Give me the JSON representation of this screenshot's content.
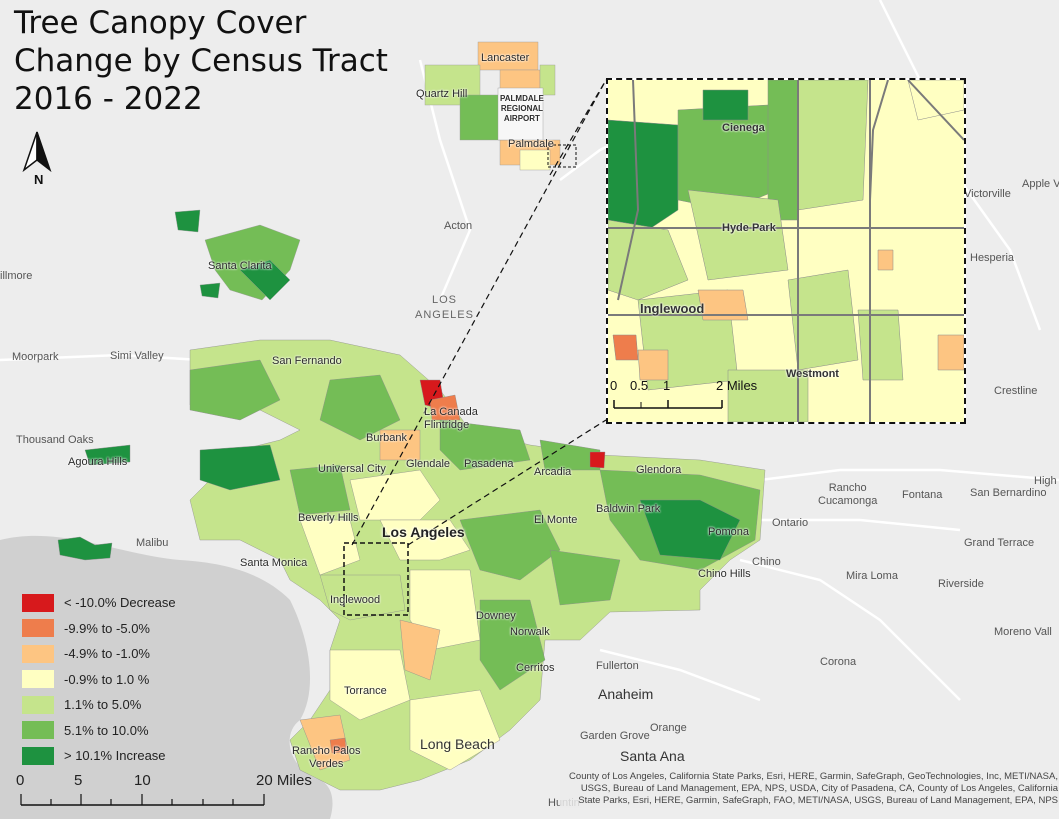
{
  "title": {
    "line1": "Tree Canopy Cover",
    "line2": "Change by Census Tract",
    "line3": "2016 - 2022"
  },
  "north_arrow": {
    "label": "N",
    "icon": "north-arrow-icon"
  },
  "legend": {
    "items": [
      {
        "label": "< -10.0% Decrease",
        "color": "#d7191c"
      },
      {
        "label": "-9.9% to -5.0%",
        "color": "#ee7d4c"
      },
      {
        "label": "-4.9% to -1.0%",
        "color": "#fdc582"
      },
      {
        "label": "-0.9% to 1.0 %",
        "color": "#ffffc2"
      },
      {
        "label": "1.1% to 5.0%",
        "color": "#c5e48c"
      },
      {
        "label": "5.1% to 10.0%",
        "color": "#74bd56"
      },
      {
        "label": "> 10.1% Increase",
        "color": "#1e9240"
      }
    ]
  },
  "scale_bar": {
    "ticks": [
      "0",
      "5",
      "10",
      "20 Miles"
    ]
  },
  "inset": {
    "labels": {
      "cienega": "Cienega",
      "hyde_park": "Hyde Park",
      "inglewood": "Inglewood",
      "westmont": "Westmont"
    },
    "scale_ticks": [
      "0",
      "0.5",
      "1",
      "2 Miles"
    ]
  },
  "places": {
    "lancaster": "Lancaster",
    "quartz_hill": "Quartz Hill",
    "palmdale_airport": "PALMDALE\nREGIONAL\nAIRPORT",
    "palmdale": "Palmdale",
    "acton": "Acton",
    "los_angeles_county": "LOS\nANGELES",
    "santa_clarita": "Santa Clarita",
    "fillmore": "illmore",
    "moorpark": "Moorpark",
    "simi_valley": "Simi Valley",
    "san_fernando": "San Fernando",
    "la_canada": "La Canada\nFlintridge",
    "thousand_oaks": "Thousand Oaks",
    "agoura_hills": "Agoura Hills",
    "burbank": "Burbank",
    "universal_city": "Universal City",
    "glendale": "Glendale",
    "pasadena": "Pasadena",
    "arcadia": "Arcadia",
    "glendora": "Glendora",
    "beverly_hills": "Beverly Hills",
    "los_angeles": "Los Angeles",
    "el_monte": "El Monte",
    "baldwin_park": "Baldwin Park",
    "malibu": "Malibu",
    "santa_monica": "Santa Monica",
    "inglewood": "Inglewood",
    "pomona": "Pomona",
    "chino_hills": "Chino Hills",
    "chino": "Chino",
    "downey": "Downey",
    "norwalk": "Norwalk",
    "cerritos": "Cerritos",
    "fullerton": "Fullerton",
    "anaheim": "Anaheim",
    "orange": "Orange",
    "garden_grove": "Garden Grove",
    "santa_ana": "Santa Ana",
    "torrance": "Torrance",
    "rancho_palos_verdes": "Rancho Palos\nVerdes",
    "long_beach": "Long Beach",
    "victorville": "Victorville",
    "apple_valley": "Apple V",
    "hesperia": "Hesperia",
    "crestline": "Crestline",
    "rancho_cucamonga": "Rancho\nCucamonga",
    "fontana": "Fontana",
    "san_bernardino": "San Bernardino",
    "high": "High",
    "ontario": "Ontario",
    "grand_terrace": "Grand Terrace",
    "mira_loma": "Mira Loma",
    "riverside": "Riverside",
    "moreno_valley": "Moreno Vall",
    "corona": "Corona",
    "huntington": "Huntin"
  },
  "attribution": "County of Los Angeles, California State Parks, Esri, HERE, Garmin, SafeGraph, GeoTechnologies, Inc, METI/NASA, USGS, Bureau of Land Management, EPA, NPS, USDA, City of Pasadena, CA, County of Los Angeles, California State Parks, Esri, HERE, Garmin, SafeGraph, FAO, METI/NASA, USGS, Bureau of Land Management, EPA, NPS"
}
